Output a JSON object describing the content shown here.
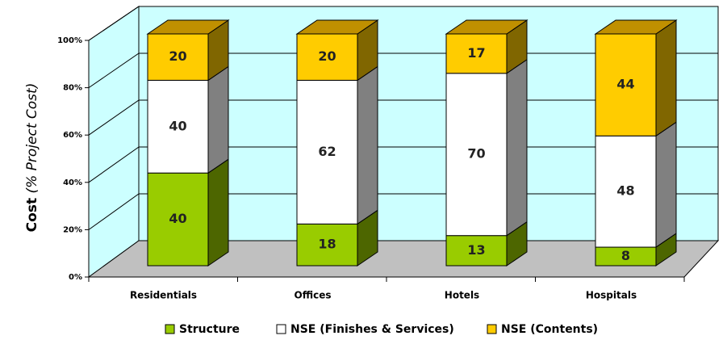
{
  "chart_data": {
    "type": "bar3d-stacked",
    "ylabel": {
      "main": "Cost",
      "note": "(% Project Cost)"
    },
    "categories": [
      "Residentials",
      "Offices",
      "Hotels",
      "Hospitals"
    ],
    "series": [
      {
        "name": "Structure",
        "color": "#99cc00",
        "side": "#4d6600",
        "values": [
          40,
          18,
          13,
          8
        ]
      },
      {
        "name": "NSE (Finishes & Services)",
        "color": "#ffffff",
        "side": "#808080",
        "values": [
          40,
          62,
          70,
          48
        ]
      },
      {
        "name": "NSE (Contents)",
        "color": "#ffcc00",
        "side": "#806600",
        "values": [
          20,
          20,
          17,
          44
        ]
      }
    ],
    "ylim": [
      0,
      100
    ],
    "yticks": [
      {
        "value": 0,
        "label": "0%"
      },
      {
        "value": 20,
        "label": "20%"
      },
      {
        "value": 40,
        "label": "40%"
      },
      {
        "value": 60,
        "label": "60%"
      },
      {
        "value": 80,
        "label": "80%"
      },
      {
        "value": 100,
        "label": "100%"
      }
    ],
    "grid": true
  }
}
